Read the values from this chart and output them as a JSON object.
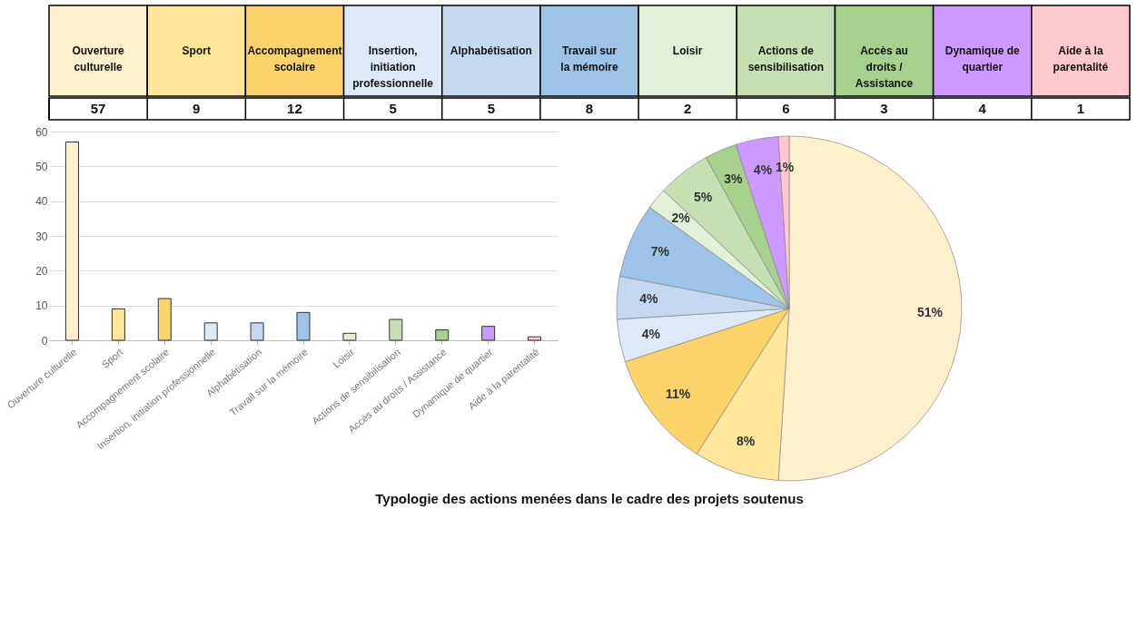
{
  "chart_data": [
    {
      "type": "other",
      "categories": [
        "Ouverture culturelle",
        "Sport",
        "Accompagnement scolaire",
        "Insertion, initiation professionnelle",
        "Alphabétisation",
        "Travail sur la mémoire",
        "Loisir",
        "Actions de sensibilisation",
        "Accès au droits / Assistance",
        "Dynamique de quartier",
        "Aide à la parentalité"
      ],
      "values": [
        57,
        9,
        12,
        5,
        5,
        8,
        2,
        6,
        3,
        4,
        1
      ],
      "colors": [
        "#fdf0cc",
        "#fde69a",
        "#fbd36a",
        "#dde9f6",
        "#c5d8ef",
        "#9dc3e6",
        "#e2efd9",
        "#c6dfb4",
        "#a8d08d",
        "#cc99ff",
        "#ffc7ce"
      ],
      "data_labels": true
    },
    {
      "type": "bar",
      "categories": [
        "Ouverture culturelle",
        "Sport",
        "Accompagnement scolaire",
        "Insertion, initiation professionnelle",
        "Alphabétisation",
        "Travail sur la mémoire",
        "Loisir",
        "Actions de sensibilisation",
        "Accès au droits / Assistance",
        "Dynamique de quartier",
        "Aide à la parentalité"
      ],
      "values": [
        57,
        9,
        12,
        5,
        5,
        8,
        2,
        6,
        3,
        4,
        1
      ],
      "colors": [
        "#fdf0cc",
        "#fde69a",
        "#fbd36a",
        "#dde9f6",
        "#c5d8ef",
        "#9dc3e6",
        "#e2efd9",
        "#c6dfb4",
        "#a8d08d",
        "#cc99ff",
        "#ffc7ce"
      ],
      "ylim": [
        0,
        60
      ],
      "yticks": [
        0,
        10,
        20,
        30,
        40,
        50,
        60
      ],
      "grid": "y",
      "annotations": [
        "Typologie des actions menées dans le cadre des projets soutenus"
      ]
    },
    {
      "type": "pie",
      "values": [
        51,
        8,
        11,
        4,
        4,
        7,
        2,
        5,
        3,
        4,
        1
      ],
      "colors": [
        "#fdf0cc",
        "#fde69a",
        "#fbd36a",
        "#dde9f6",
        "#c5d8ef",
        "#9dc3e6",
        "#e2efd9",
        "#c6dfb4",
        "#a8d08d",
        "#cc99ff",
        "#ffc7ce"
      ],
      "value_labels": [
        "51%",
        "8%",
        "11%",
        "4%",
        "4%",
        "7%",
        "2%",
        "5%",
        "3%",
        "4%",
        "1%"
      ]
    }
  ]
}
